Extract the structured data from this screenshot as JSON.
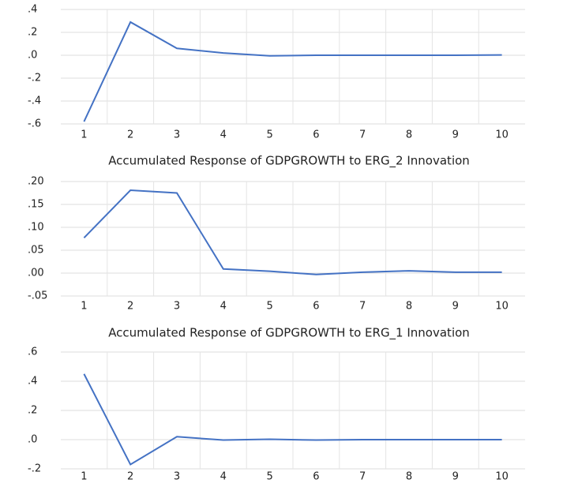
{
  "chart_data": [
    {
      "type": "line",
      "categories": [
        "1",
        "2",
        "3",
        "4",
        "5",
        "6",
        "7",
        "8",
        "9",
        "10"
      ],
      "series": [
        {
          "color": "#4472c4",
          "values": [
            -0.58,
            0.29,
            0.06,
            0.02,
            -0.005,
            0,
            0,
            0,
            0,
            0.003
          ]
        }
      ],
      "ylim": [
        -0.6,
        0.4
      ],
      "yticks": [
        {
          "value": 0.4,
          "label": ".4"
        },
        {
          "value": 0.2,
          "label": ".2"
        },
        {
          "value": 0,
          "label": ".0"
        },
        {
          "value": -0.2,
          "label": "-.2"
        },
        {
          "value": -0.4,
          "label": "-.4"
        },
        {
          "value": -0.6,
          "label": "-.6"
        }
      ],
      "grid": true
    },
    {
      "type": "line",
      "title": "Accumulated Response of GDPGROWTH to ERG_2 Innovation",
      "categories": [
        "1",
        "2",
        "3",
        "4",
        "5",
        "6",
        "7",
        "8",
        "9",
        "10"
      ],
      "series": [
        {
          "color": "#4472c4",
          "values": [
            0.077,
            0.181,
            0.175,
            0.009,
            0.004,
            -0.003,
            0.002,
            0.005,
            0.002,
            0.002
          ]
        }
      ],
      "ylim": [
        -0.05,
        0.2
      ],
      "yticks": [
        {
          "value": 0.2,
          "label": ".20"
        },
        {
          "value": 0.15,
          "label": ".15"
        },
        {
          "value": 0.1,
          "label": ".10"
        },
        {
          "value": 0.05,
          "label": ".05"
        },
        {
          "value": 0,
          "label": ".00"
        },
        {
          "value": -0.05,
          "label": "-.05"
        }
      ],
      "grid": true
    },
    {
      "type": "line",
      "title": "Accumulated Response of GDPGROWTH to ERG_1 Innovation",
      "categories": [
        "1",
        "2",
        "3",
        "4",
        "5",
        "6",
        "7",
        "8",
        "9",
        "10"
      ],
      "series": [
        {
          "color": "#4472c4",
          "values": [
            0.45,
            -0.17,
            0.02,
            -0.003,
            0.003,
            -0.003,
            0,
            0,
            0,
            0
          ]
        }
      ],
      "ylim": [
        -0.2,
        0.6
      ],
      "yticks": [
        {
          "value": 0.6,
          "label": ".6"
        },
        {
          "value": 0.4,
          "label": ".4"
        },
        {
          "value": 0.2,
          "label": ".2"
        },
        {
          "value": 0,
          "label": ".0"
        },
        {
          "value": -0.2,
          "label": "-.2"
        }
      ],
      "grid": true
    }
  ]
}
